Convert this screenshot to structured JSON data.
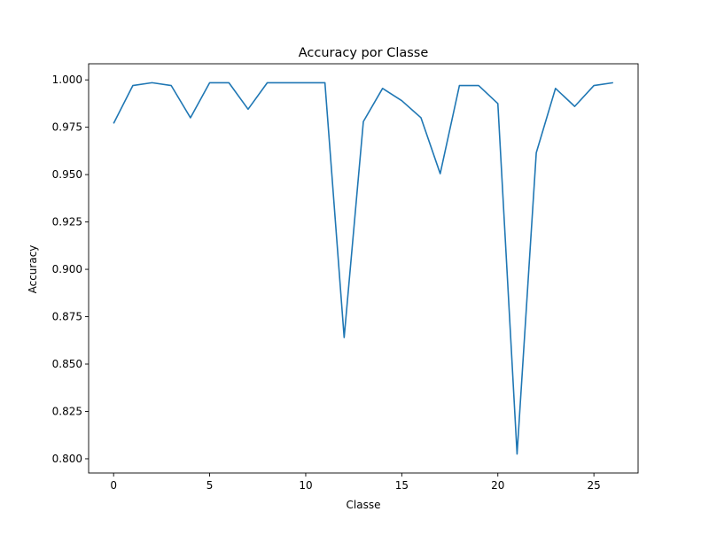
{
  "chart_data": {
    "type": "line",
    "title": "Accuracy por Classe",
    "xlabel": "Classe",
    "ylabel": "Accuracy",
    "xlim": [
      -1.3,
      27.3
    ],
    "ylim": [
      0.7925,
      1.0085
    ],
    "xticks": [
      0,
      5,
      10,
      15,
      20,
      25
    ],
    "yticks": [
      0.8,
      0.825,
      0.85,
      0.875,
      0.9,
      0.925,
      0.95,
      0.975,
      1.0
    ],
    "ytick_labels": [
      "0.800",
      "0.825",
      "0.850",
      "0.875",
      "0.900",
      "0.925",
      "0.950",
      "0.975",
      "1.000"
    ],
    "grid": false,
    "series": [
      {
        "color": "#1f77b4",
        "x": [
          0,
          1,
          2,
          3,
          4,
          5,
          6,
          7,
          8,
          9,
          10,
          11,
          12,
          13,
          14,
          15,
          16,
          17,
          18,
          19,
          20,
          21,
          22,
          23,
          24,
          25,
          26
        ],
        "y": [
          0.977,
          0.997,
          0.9985,
          0.997,
          0.98,
          0.9985,
          0.9985,
          0.9845,
          0.9985,
          0.9985,
          0.9985,
          0.9985,
          0.864,
          0.978,
          0.9955,
          0.989,
          0.98,
          0.9505,
          0.997,
          0.997,
          0.9875,
          0.8025,
          0.9615,
          0.9955,
          0.986,
          0.997,
          0.9985
        ]
      }
    ]
  }
}
